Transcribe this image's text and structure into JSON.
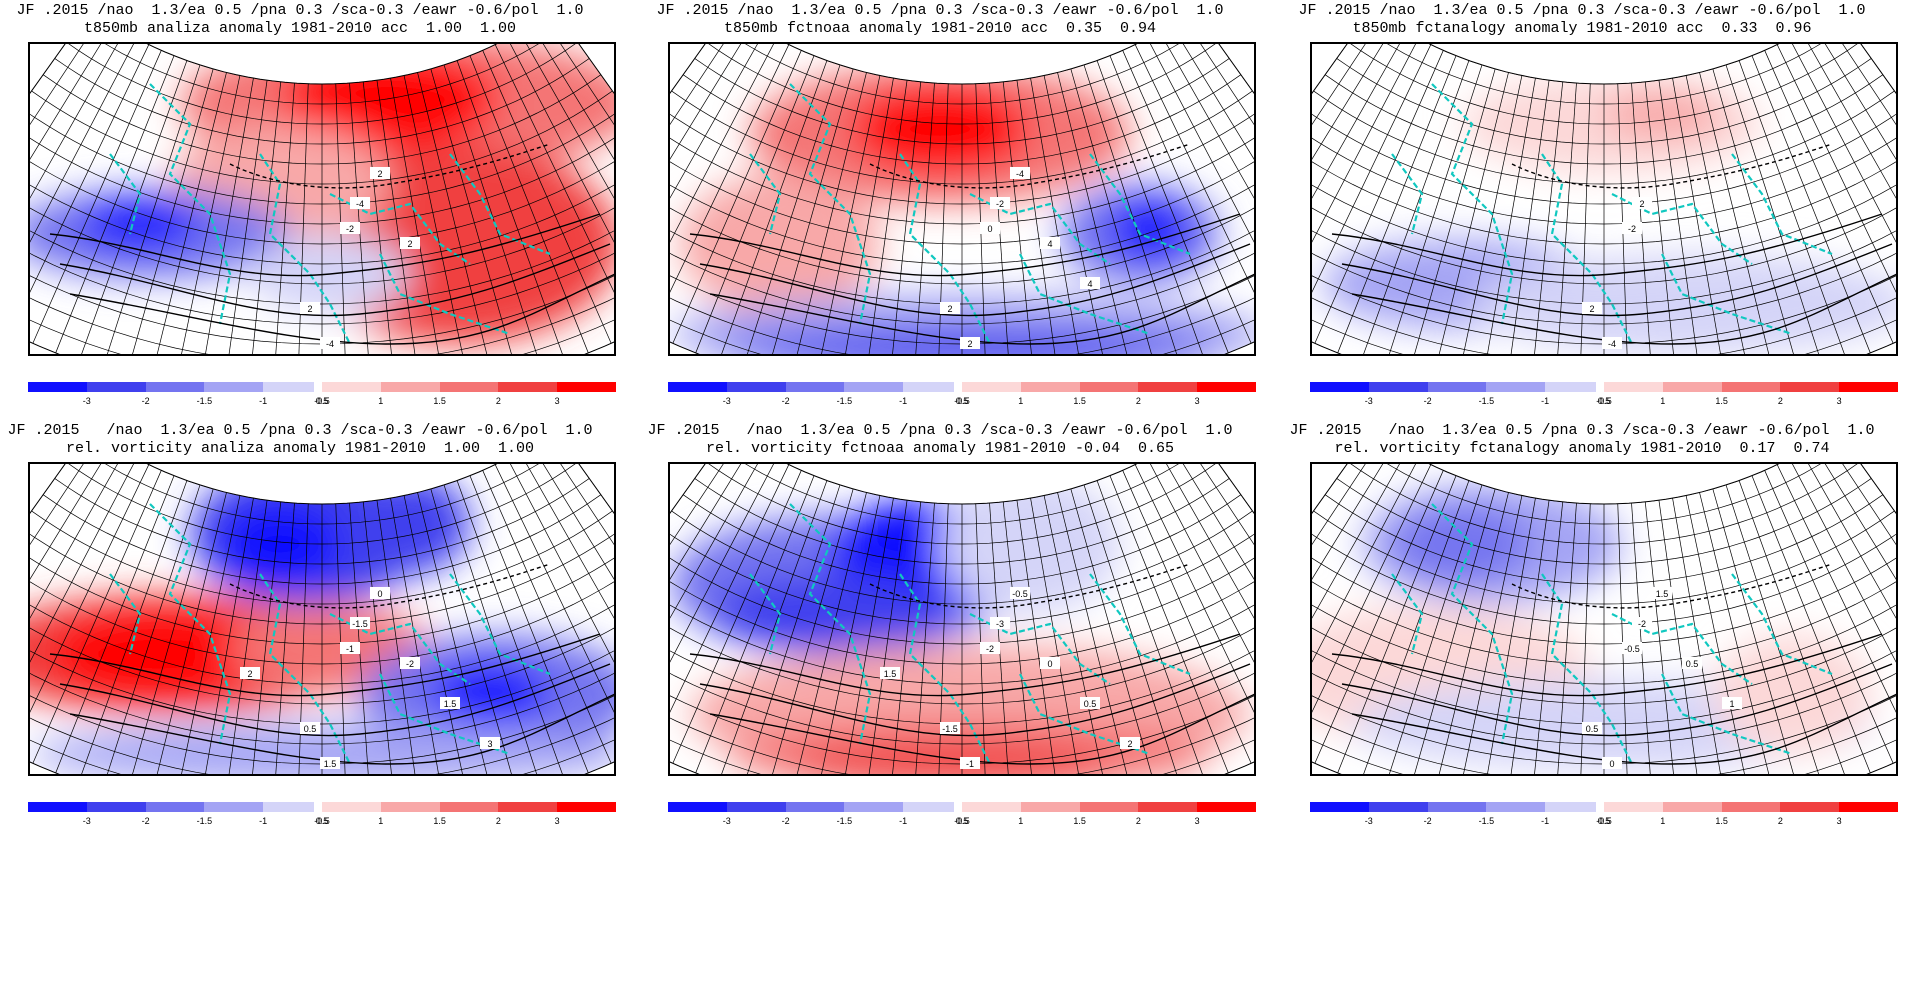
{
  "panels": [
    {
      "line1": "JF .2015 /nao  1.3/ea 0.5 /pna 0.3 /sca-0.3 /eawr -0.6/pol  1.0",
      "line2": "t850mb analiza anomaly 1981-2010 acc  1.00  1.00",
      "field": "t850mb",
      "source": "analiza",
      "contour_labels": [
        "-4",
        "-2",
        "2",
        "-4",
        "2",
        "2"
      ]
    },
    {
      "line1": "JF .2015 /nao  1.3/ea 0.5 /pna 0.3 /sca-0.3 /eawr -0.6/pol  1.0",
      "line2": "t850mb fctnoaa anomaly 1981-2010 acc  0.35  0.94",
      "field": "t850mb",
      "source": "fctnoaa",
      "contour_labels": [
        "-2",
        "0",
        "2",
        "2",
        "-4",
        "4",
        "4"
      ]
    },
    {
      "line1": "JF .2015 /nao  1.3/ea 0.5 /pna 0.3 /sca-0.3 /eawr -0.6/pol  1.0",
      "line2": "t850mb fctanalogy anomaly 1981-2010 acc  0.33  0.96",
      "field": "t850mb",
      "source": "fctanalogy",
      "contour_labels": [
        "2",
        "-2",
        "2",
        "-4"
      ]
    },
    {
      "line1": "JF .2015   /nao  1.3/ea 0.5 /pna 0.3 /sca-0.3 /eawr -0.6/pol  1.0",
      "line2": "rel. vorticity analiza anomaly 1981-2010  1.00  1.00",
      "field": "rel. vorticity",
      "source": "analiza",
      "contour_labels": [
        "-1.5",
        "-1",
        "0.5",
        "1.5",
        "0",
        "-2",
        "1.5",
        "2",
        "3"
      ]
    },
    {
      "line1": "JF .2015   /nao  1.3/ea 0.5 /pna 0.3 /sca-0.3 /eawr -0.6/pol  1.0",
      "line2": "rel. vorticity fctnoaa anomaly 1981-2010 -0.04  0.65",
      "field": "rel. vorticity",
      "source": "fctnoaa",
      "contour_labels": [
        "-3",
        "-2",
        "-1.5",
        "-1",
        "-0.5",
        "0",
        "0.5",
        "1.5",
        "2"
      ]
    },
    {
      "line1": "JF .2015   /nao  1.3/ea 0.5 /pna 0.3 /sca-0.3 /eawr -0.6/pol  1.0",
      "line2": "rel. vorticity fctanalogy anomaly 1981-2010  0.17  0.74",
      "field": "rel. vorticity",
      "source": "fctanalogy",
      "contour_labels": [
        "-2",
        "-0.5",
        "0.5",
        "0",
        "1.5",
        "0.5",
        "1"
      ]
    }
  ],
  "colorbar": {
    "ticks": [
      "-3",
      "-2",
      "-1.5",
      "-1",
      "-0.5",
      "0.5",
      "1",
      "1.5",
      "2",
      "3"
    ],
    "colors": [
      "#1010ff",
      "#4040ee",
      "#7474f0",
      "#a4a4f4",
      "#d4d4f8",
      "#fcd8d8",
      "#f8a8a8",
      "#f47474",
      "#f04040",
      "#ff0000"
    ]
  },
  "colors": {
    "coast": "#10c8c0",
    "contour": "#000000",
    "grid": "#000000"
  }
}
